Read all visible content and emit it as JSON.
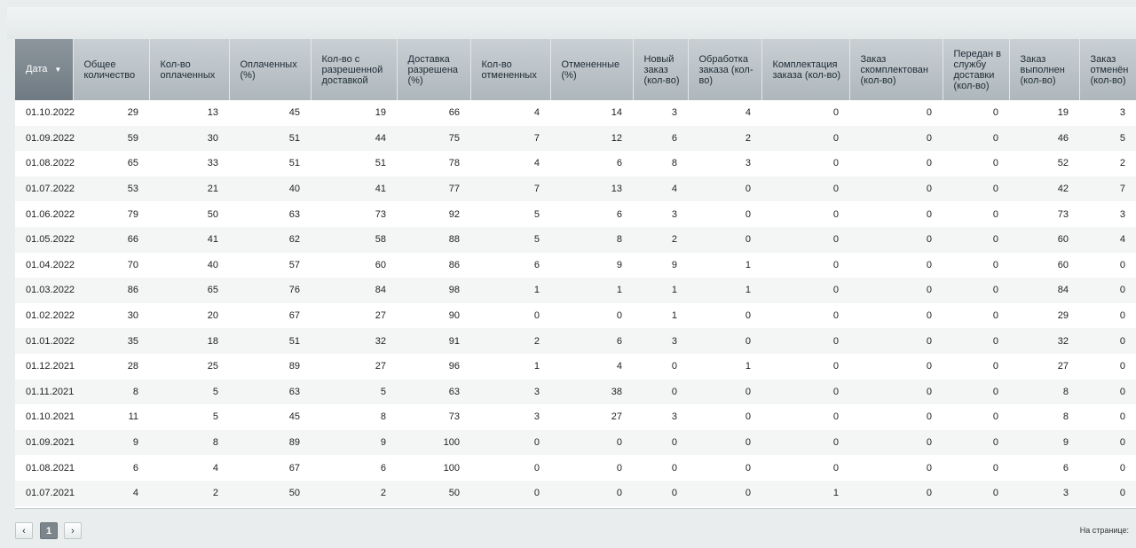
{
  "table": {
    "headers": [
      "Дата",
      "Общее количество",
      "Кол-во оплаченных",
      "Оплаченных (%)",
      "Кол-во с разрешенной доставкой",
      "Доставка разрешена (%)",
      "Кол-во отмененных",
      "Отмененные (%)",
      "Новый заказ (кол-во)",
      "Обработка заказа (кол-во)",
      "Комплектация заказа (кол-во)",
      "Заказ скомплектован (кол-во)",
      "Передан в службу доставки (кол-во)",
      "Заказ выполнен (кол-во)",
      "Заказ отменён (кол-во)"
    ],
    "rows": [
      [
        "01.10.2022",
        29,
        13,
        45,
        19,
        66,
        4,
        14,
        3,
        4,
        0,
        0,
        0,
        19,
        3
      ],
      [
        "01.09.2022",
        59,
        30,
        51,
        44,
        75,
        7,
        12,
        6,
        2,
        0,
        0,
        0,
        46,
        5
      ],
      [
        "01.08.2022",
        65,
        33,
        51,
        51,
        78,
        4,
        6,
        8,
        3,
        0,
        0,
        0,
        52,
        2
      ],
      [
        "01.07.2022",
        53,
        21,
        40,
        41,
        77,
        7,
        13,
        4,
        0,
        0,
        0,
        0,
        42,
        7
      ],
      [
        "01.06.2022",
        79,
        50,
        63,
        73,
        92,
        5,
        6,
        3,
        0,
        0,
        0,
        0,
        73,
        3
      ],
      [
        "01.05.2022",
        66,
        41,
        62,
        58,
        88,
        5,
        8,
        2,
        0,
        0,
        0,
        0,
        60,
        4
      ],
      [
        "01.04.2022",
        70,
        40,
        57,
        60,
        86,
        6,
        9,
        9,
        1,
        0,
        0,
        0,
        60,
        0
      ],
      [
        "01.03.2022",
        86,
        65,
        76,
        84,
        98,
        1,
        1,
        1,
        1,
        0,
        0,
        0,
        84,
        0
      ],
      [
        "01.02.2022",
        30,
        20,
        67,
        27,
        90,
        0,
        0,
        1,
        0,
        0,
        0,
        0,
        29,
        0
      ],
      [
        "01.01.2022",
        35,
        18,
        51,
        32,
        91,
        2,
        6,
        3,
        0,
        0,
        0,
        0,
        32,
        0
      ],
      [
        "01.12.2021",
        28,
        25,
        89,
        27,
        96,
        1,
        4,
        0,
        1,
        0,
        0,
        0,
        27,
        0
      ],
      [
        "01.11.2021",
        8,
        5,
        63,
        5,
        63,
        3,
        38,
        0,
        0,
        0,
        0,
        0,
        8,
        0
      ],
      [
        "01.10.2021",
        11,
        5,
        45,
        8,
        73,
        3,
        27,
        3,
        0,
        0,
        0,
        0,
        8,
        0
      ],
      [
        "01.09.2021",
        9,
        8,
        89,
        9,
        100,
        0,
        0,
        0,
        0,
        0,
        0,
        0,
        9,
        0
      ],
      [
        "01.08.2021",
        6,
        4,
        67,
        6,
        100,
        0,
        0,
        0,
        0,
        0,
        0,
        0,
        6,
        0
      ],
      [
        "01.07.2021",
        4,
        2,
        50,
        2,
        50,
        0,
        0,
        0,
        0,
        1,
        0,
        0,
        3,
        0
      ]
    ]
  },
  "pagination": {
    "current_page": "1",
    "per_page_label": "На странице:"
  }
}
